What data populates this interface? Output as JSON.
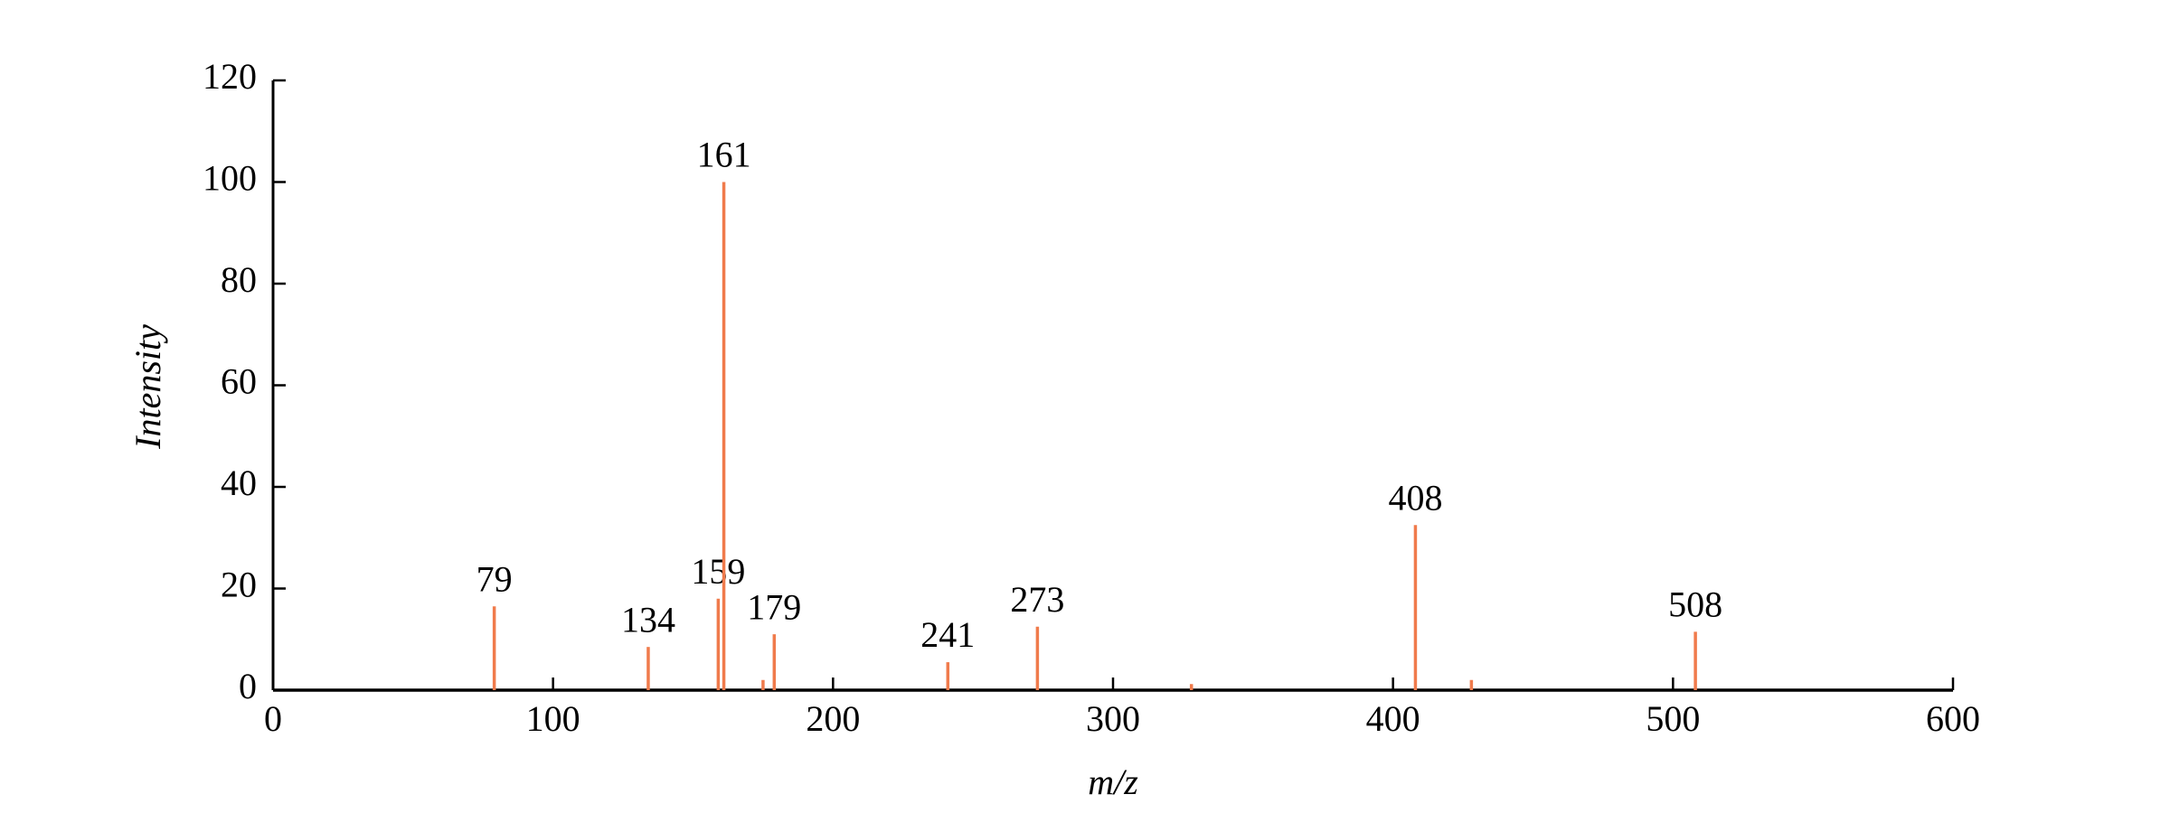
{
  "chart_data": {
    "type": "stem",
    "xlabel": "m/z",
    "ylabel": "Intensity",
    "x": [
      79,
      134,
      159,
      161,
      175,
      179,
      241,
      273,
      328,
      408,
      428,
      508
    ],
    "values": [
      16.5,
      8.5,
      18,
      100,
      2,
      11,
      5.5,
      12.5,
      1.2,
      32.5,
      2,
      11.5
    ],
    "peak_labels": [
      "79",
      "134",
      "159",
      "161",
      null,
      "179",
      "241",
      "273",
      null,
      "408",
      null,
      "508"
    ],
    "color": "#f07b4c",
    "xlim": [
      0,
      600
    ],
    "xticks": [
      0,
      100,
      200,
      300,
      400,
      500,
      600
    ],
    "ylim": [
      0,
      120
    ],
    "yticks": [
      0,
      20,
      40,
      60,
      80,
      100,
      120
    ]
  }
}
